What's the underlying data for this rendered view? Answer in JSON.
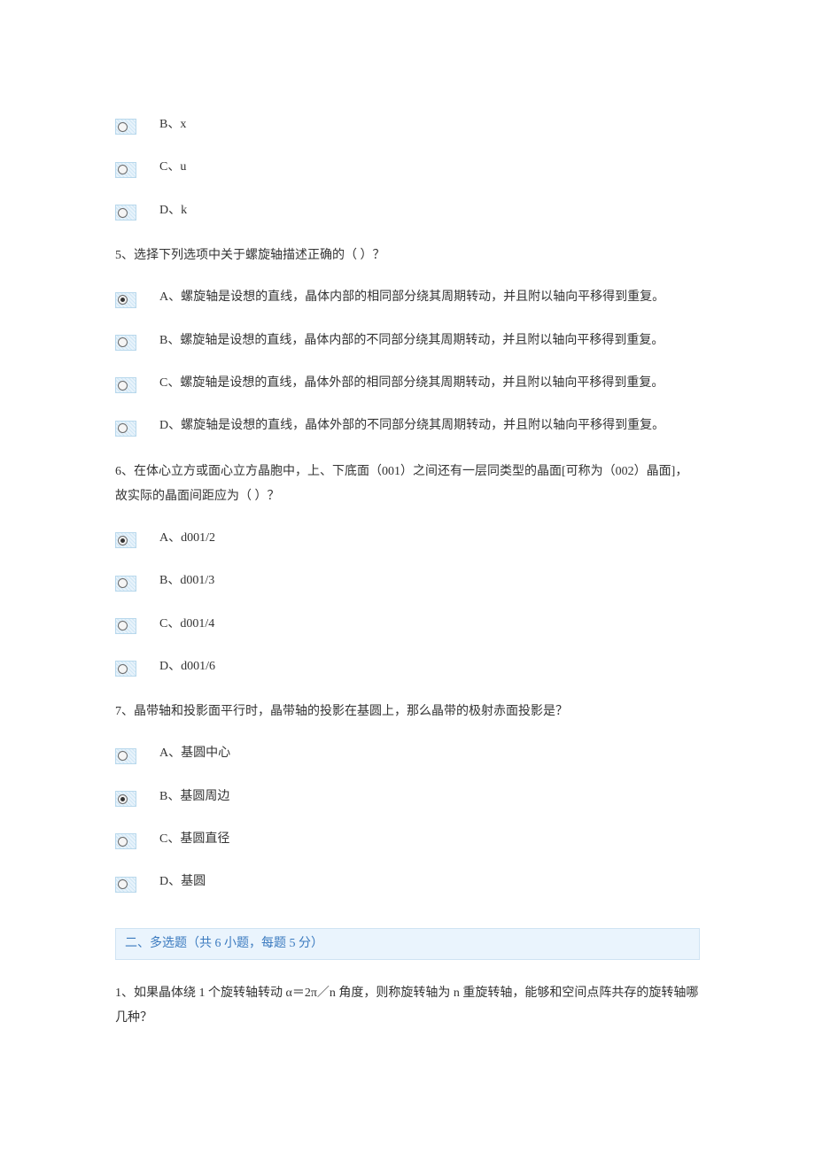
{
  "colors": {
    "page_bg": "#ffffff",
    "text": "#333333",
    "radio_bg_stripe_a": "#cfe6f5",
    "radio_bg_stripe_b": "#e8f3fb",
    "radio_border": "#b8d8ec",
    "radio_dot_border": "#6b6b6b",
    "radio_dot_fill": "#333333",
    "section_bg": "#eaf4fd",
    "section_border": "#cfe3f3",
    "section_text": "#3b7abf"
  },
  "leading_options": [
    {
      "label": "B、x",
      "selected": false
    },
    {
      "label": "C、u",
      "selected": false
    },
    {
      "label": "D、k",
      "selected": false
    }
  ],
  "questions": [
    {
      "stem": "5、选择下列选项中关于螺旋轴描述正确的（ ）？",
      "options": [
        {
          "label": "A、螺旋轴是设想的直线，晶体内部的相同部分绕其周期转动，并且附以轴向平移得到重复。",
          "selected": true
        },
        {
          "label": "B、螺旋轴是设想的直线，晶体内部的不同部分绕其周期转动，并且附以轴向平移得到重复。",
          "selected": false
        },
        {
          "label": "C、螺旋轴是设想的直线，晶体外部的相同部分绕其周期转动，并且附以轴向平移得到重复。",
          "selected": false
        },
        {
          "label": "D、螺旋轴是设想的直线，晶体外部的不同部分绕其周期转动，并且附以轴向平移得到重复。",
          "selected": false
        }
      ]
    },
    {
      "stem": "6、在体心立方或面心立方晶胞中，上、下底面（001）之间还有一层同类型的晶面[可称为（002）晶面]，故实际的晶面间距应为（ ）？",
      "options": [
        {
          "label": "A、d001/2",
          "selected": true
        },
        {
          "label": "B、d001/3",
          "selected": false
        },
        {
          "label": "C、d001/4",
          "selected": false
        },
        {
          "label": "D、d001/6",
          "selected": false
        }
      ]
    },
    {
      "stem": "7、晶带轴和投影面平行时，晶带轴的投影在基圆上，那么晶带的极射赤面投影是？",
      "options": [
        {
          "label": "A、基圆中心",
          "selected": false
        },
        {
          "label": "B、基圆周边",
          "selected": true
        },
        {
          "label": "C、基圆直径",
          "selected": false
        },
        {
          "label": "D、基圆",
          "selected": false
        }
      ]
    }
  ],
  "section2": {
    "header": "二、多选题（共 6 小题，每题 5 分）",
    "q1_stem": "1、如果晶体绕 1 个旋转轴转动 α＝2π／n 角度，则称旋转轴为 n 重旋转轴，能够和空间点阵共存的旋转轴哪几种？"
  }
}
